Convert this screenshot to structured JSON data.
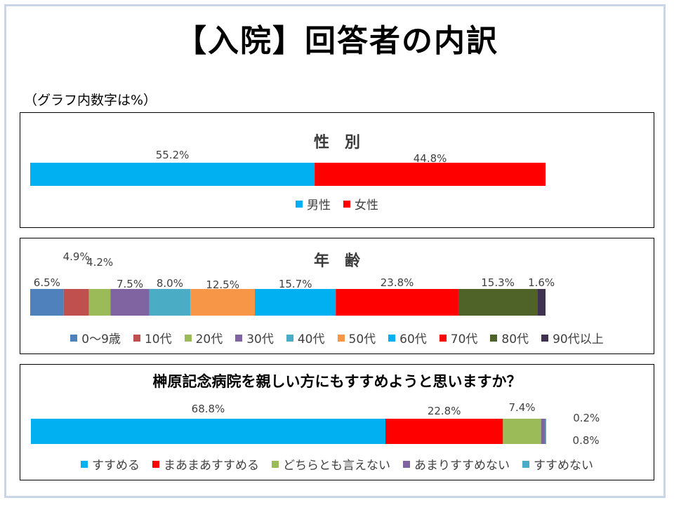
{
  "page": {
    "title": "【入院】回答者の内訳",
    "note": "（グラフ内数字は%）"
  },
  "chart_data": [
    {
      "type": "bar",
      "stacked": true,
      "orientation": "horizontal",
      "title": "性　別",
      "xlim": [
        0,
        100
      ],
      "grid": false,
      "legend": "bottom",
      "series": [
        {
          "name": "男性",
          "value": 55.2,
          "label": "55.2%",
          "color": "#00b0f0"
        },
        {
          "name": "女性",
          "value": 44.8,
          "label": "44.8%",
          "color": "#ff0000"
        }
      ]
    },
    {
      "type": "bar",
      "stacked": true,
      "orientation": "horizontal",
      "title": "年　齢",
      "xlim": [
        0,
        100
      ],
      "grid": false,
      "legend": "bottom",
      "series": [
        {
          "name": "0～9歳",
          "value": 6.5,
          "label": "6.5%",
          "color": "#4f81bd"
        },
        {
          "name": "10代",
          "value": 4.9,
          "label": "4.9%",
          "color": "#c0504d"
        },
        {
          "name": "20代",
          "value": 4.2,
          "label": "4.2%",
          "color": "#9bbb59"
        },
        {
          "name": "30代",
          "value": 7.5,
          "label": "7.5%",
          "color": "#8064a2"
        },
        {
          "name": "40代",
          "value": 8.0,
          "label": "8.0%",
          "color": "#4bacc6"
        },
        {
          "name": "50代",
          "value": 12.5,
          "label": "12.5%",
          "color": "#f79646"
        },
        {
          "name": "60代",
          "value": 15.7,
          "label": "15.7%",
          "color": "#00b0f0"
        },
        {
          "name": "70代",
          "value": 23.8,
          "label": "23.8%",
          "color": "#ff0000"
        },
        {
          "name": "80代",
          "value": 15.3,
          "label": "15.3%",
          "color": "#4f6228"
        },
        {
          "name": "90代以上",
          "value": 1.6,
          "label": "1.6%",
          "color": "#403151"
        }
      ]
    },
    {
      "type": "bar",
      "stacked": true,
      "orientation": "horizontal",
      "title": "榊原記念病院を親しい方にもすすめようと思いますか？",
      "xlim": [
        0,
        100
      ],
      "grid": false,
      "legend": "bottom",
      "series": [
        {
          "name": "すすめる",
          "value": 68.8,
          "label": "68.8%",
          "color": "#00b0f0"
        },
        {
          "name": "まあまあすすめる",
          "value": 22.8,
          "label": "22.8%",
          "color": "#ff0000"
        },
        {
          "name": "どちらとも言えない",
          "value": 7.4,
          "label": "7.4%",
          "color": "#9bbb59"
        },
        {
          "name": "あまりすすめない",
          "value": 0.8,
          "label": "0.8%",
          "color": "#8064a2"
        },
        {
          "name": "すすめない",
          "value": 0.2,
          "label": "0.2%",
          "color": "#4bacc6"
        }
      ]
    }
  ]
}
